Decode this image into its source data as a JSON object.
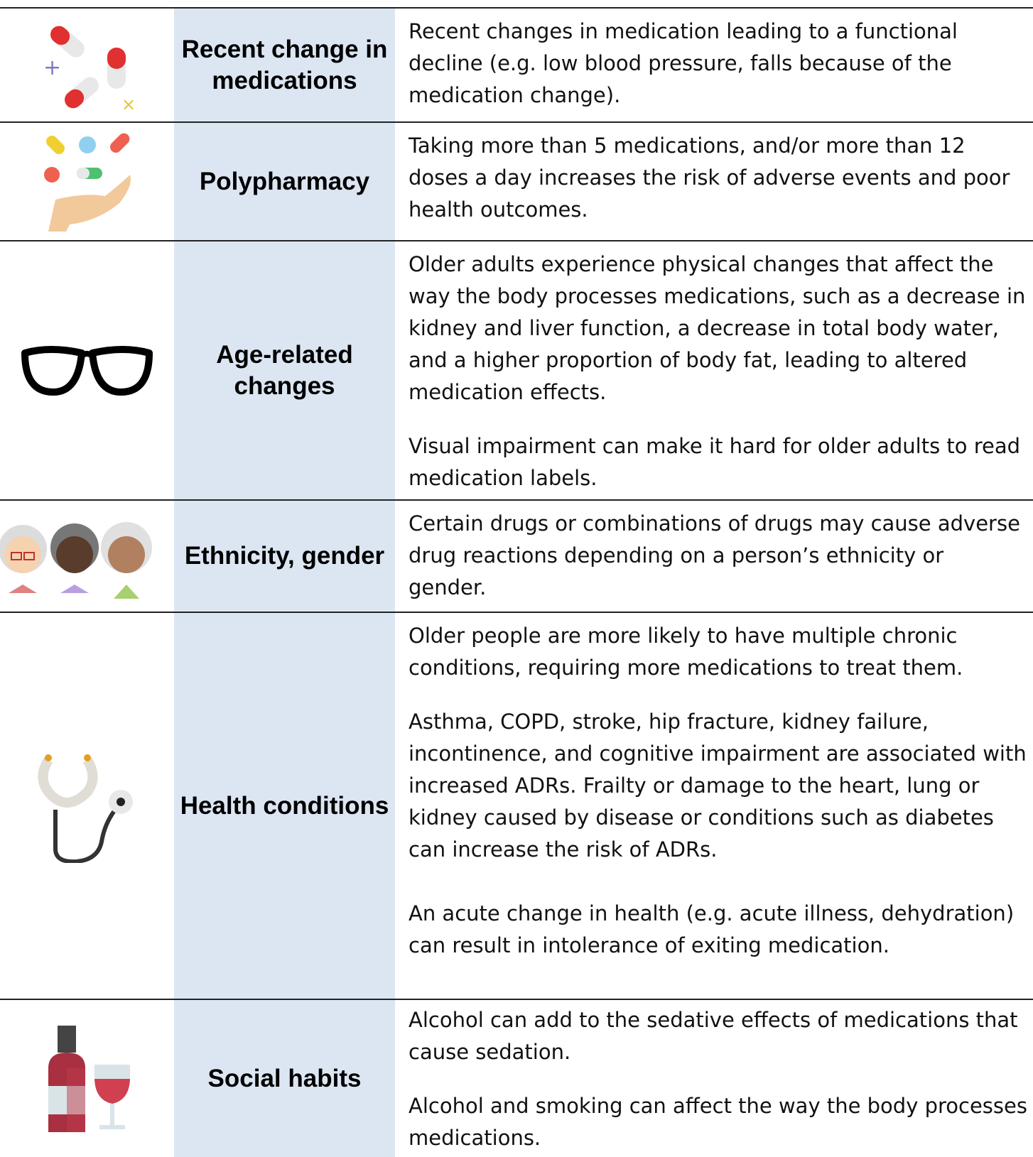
{
  "rows": [
    {
      "label": "Recent change in medications",
      "paragraphs": [
        "Recent changes in medication leading to a functional decline (e.g. low blood pressure, falls because of the medication change)."
      ]
    },
    {
      "label": "Polypharmacy",
      "paragraphs": [
        "Taking more than 5 medications, and/or more than 12 doses a day increases the risk of adverse events and poor health outcomes."
      ]
    },
    {
      "label": "Age-related changes",
      "paragraphs": [
        "Older adults experience physical changes that affect the way the body processes medications, such as a decrease in kidney and liver function, a decrease in total body water, and a higher proportion of body fat, leading to altered medication effects.",
        "Visual impairment can make it hard for older adults to read medication labels."
      ]
    },
    {
      "label": "Ethnicity, gender",
      "paragraphs": [
        "Certain drugs or combinations of drugs may cause adverse drug reactions depending on a person’s ethnicity or gender."
      ]
    },
    {
      "label": "Health conditions",
      "paragraphs": [
        "Older people are more likely to have multiple chronic conditions, requiring more medications to treat them.",
        "Asthma, COPD, stroke, hip fracture, kidney failure, incontinence, and cognitive impairment are associated with increased ADRs. Frailty or damage to the heart, lung or kidney caused by disease or conditions such as diabetes can increase the risk of ADRs.",
        "An acute change in health (e.g. acute illness, dehydration) can result in intolerance of exiting medication."
      ]
    },
    {
      "label": "Social habits",
      "paragraphs": [
        "Alcohol can add to the sedative effects of medications that cause sedation.",
        "Alcohol and smoking can affect the way the body processes medications."
      ]
    }
  ]
}
